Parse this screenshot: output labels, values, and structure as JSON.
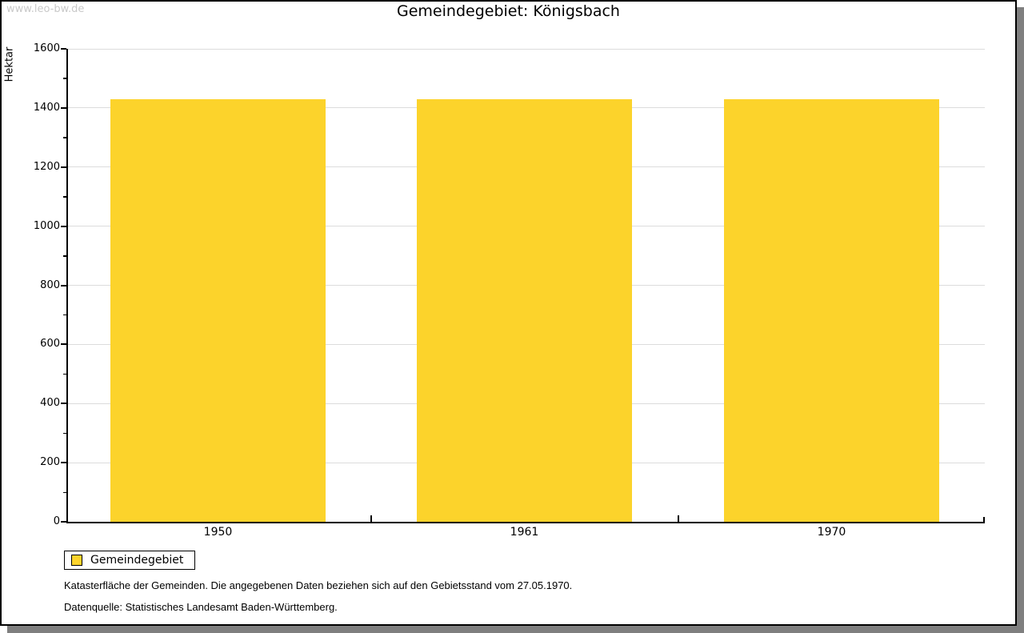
{
  "watermark": "www.leo-bw.de",
  "title": "Gemeindegebiet: Königsbach",
  "chart_data": {
    "type": "bar",
    "title": "Gemeindegebiet: Königsbach",
    "categories": [
      "1950",
      "1961",
      "1970"
    ],
    "series": [
      {
        "name": "Gemeindegebiet",
        "values": [
          1429,
          1429,
          1429
        ]
      }
    ],
    "xlabel": "",
    "ylabel": "Hektar",
    "ylim": [
      0,
      1600
    ],
    "ytick_step": 200,
    "yminor_step": 100,
    "grid": true,
    "legend_position": "bottom-left",
    "bar_color": "#FCD32B"
  },
  "legend": {
    "items": [
      {
        "label": "Gemeindegebiet",
        "color": "#FCD32B"
      }
    ]
  },
  "footnotes": [
    "Katasterfläche der Gemeinden. Die angegebenen Daten beziehen sich auf den Gebietsstand vom 27.05.1970.",
    "Datenquelle: Statistisches Landesamt Baden-Württemberg."
  ],
  "colors": {
    "bar": "#FCD32B",
    "grid": "#DCDCDC",
    "axis": "#000000",
    "watermark": "#C9C9C9",
    "shadow": "#7F7F7F",
    "background": "#FFFFFF"
  }
}
